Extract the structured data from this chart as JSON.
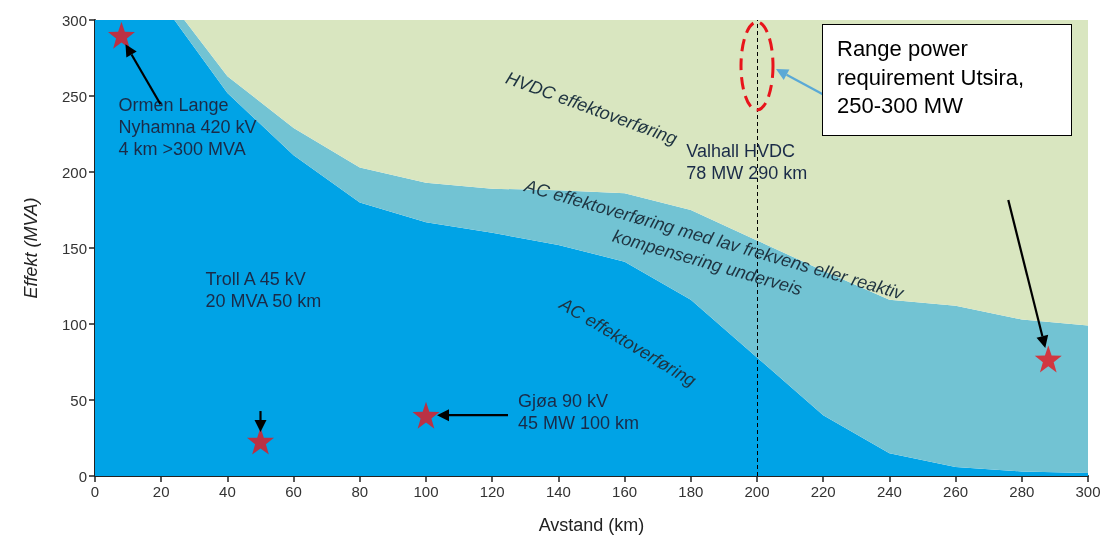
{
  "chart_data": {
    "type": "area",
    "stacked": true,
    "xlabel": "Avstand (km)",
    "ylabel": "Effekt (MVA)",
    "x": [
      0,
      24,
      27,
      40,
      60,
      80,
      100,
      120,
      140,
      160,
      180,
      200,
      220,
      240,
      260,
      280,
      300
    ],
    "series": [
      {
        "name": "AC effektoverføring",
        "color": "#00a3e6",
        "values": [
          300,
          300,
          291,
          252,
          211,
          180,
          167,
          160,
          152,
          141,
          116,
          78,
          40,
          15,
          6,
          3,
          2
        ]
      },
      {
        "name": "AC effektoverføring med lav frekvens eller reaktiv\nkompensering underveis",
        "color": "#72c3d3",
        "values": [
          0,
          0,
          9,
          11,
          18,
          23,
          26,
          29,
          36,
          45,
          59,
          77,
          95,
          101,
          106,
          100,
          97
        ]
      },
      {
        "name": "HVDC effektoverføring",
        "color": "#d9e6c0",
        "values": [
          0,
          0,
          0,
          37,
          71,
          97,
          107,
          111,
          112,
          114,
          125,
          145,
          165,
          184,
          188,
          197,
          201
        ]
      },
      {
        "type": "scatter",
        "color": "#e8141b",
        "marker": "star",
        "x": [
          8,
          50,
          100,
          288
        ],
        "values": [
          290,
          23,
          40,
          77
        ]
      }
    ],
    "xlim": [
      0,
      300
    ],
    "xticks": [
      0,
      20,
      40,
      60,
      80,
      100,
      120,
      140,
      160,
      180,
      200,
      220,
      240,
      260,
      280,
      300
    ],
    "ylim": [
      0,
      300
    ],
    "yticks": [
      0,
      50,
      100,
      150,
      200,
      250,
      300
    ],
    "grid": false,
    "legend": false,
    "ref_lines": [
      {
        "axis": "x",
        "value": 200,
        "color": "#000000",
        "line_style": "dashed"
      }
    ],
    "annotations": [
      "Ormen Lange\nNyhamna 420 kV\n4 km >300 MVA",
      "Troll A 45 kV\n20 MVA 50 km",
      "Gjøa 90 kV\n45 MW 100 km",
      "Valhall HVDC\n78 MW 290 km",
      "Range power requirement Utsira, 250-300 MW"
    ]
  }
}
